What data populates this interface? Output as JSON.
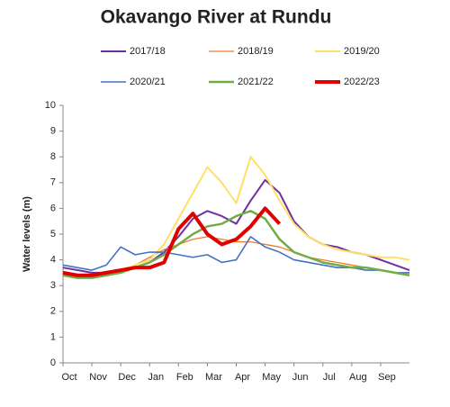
{
  "chart_data": {
    "type": "line",
    "title": "Okavango River at Rundu",
    "y_label": "Water levels (m)",
    "x": [
      0,
      0.5,
      1,
      1.5,
      2,
      2.5,
      3,
      3.5,
      4,
      4.5,
      5,
      5.5,
      6,
      6.5,
      7,
      7.5,
      8,
      8.5,
      9,
      9.5,
      10,
      10.5,
      11,
      11.5,
      12
    ],
    "xlim": [
      0,
      12
    ],
    "xticks": [
      {
        "value": 0,
        "label": "Oct"
      },
      {
        "value": 1,
        "label": "Nov"
      },
      {
        "value": 2,
        "label": "Dec"
      },
      {
        "value": 3,
        "label": "Jan"
      },
      {
        "value": 4,
        "label": "Feb"
      },
      {
        "value": 5,
        "label": "Mar"
      },
      {
        "value": 6,
        "label": "Apr"
      },
      {
        "value": 7,
        "label": "May"
      },
      {
        "value": 8,
        "label": "Jun"
      },
      {
        "value": 9,
        "label": "Jul"
      },
      {
        "value": 10,
        "label": "Aug"
      },
      {
        "value": 11,
        "label": "Sep"
      }
    ],
    "ylim": [
      0,
      10
    ],
    "yticks": [
      0,
      1,
      2,
      3,
      4,
      5,
      6,
      7,
      8,
      9,
      10
    ],
    "grid": false,
    "series": [
      {
        "name": "2017/18",
        "color": "#7030a0",
        "width": 2,
        "values": [
          3.7,
          3.6,
          3.5,
          3.5,
          3.6,
          3.7,
          3.9,
          4.3,
          4.9,
          5.6,
          5.9,
          5.7,
          5.4,
          6.3,
          7.1,
          6.6,
          5.5,
          4.9,
          4.6,
          4.5,
          4.3,
          4.2,
          4.0,
          3.8,
          3.6
        ]
      },
      {
        "name": "2018/19",
        "color": "#ed7d31",
        "width": 1.3,
        "values": [
          3.5,
          3.4,
          3.4,
          3.5,
          3.6,
          3.8,
          4.1,
          4.4,
          4.6,
          4.8,
          4.9,
          4.8,
          4.7,
          4.7,
          4.6,
          4.5,
          4.3,
          4.1,
          4.0,
          3.9,
          3.8,
          3.7,
          3.6,
          3.5,
          3.5
        ]
      },
      {
        "name": "2019/20",
        "color": "#ffe066",
        "width": 2,
        "values": [
          3.5,
          3.4,
          3.4,
          3.5,
          3.6,
          3.8,
          4.0,
          4.6,
          5.6,
          6.6,
          7.6,
          7.0,
          6.2,
          8.0,
          7.3,
          6.3,
          5.4,
          4.9,
          4.6,
          4.4,
          4.3,
          4.2,
          4.1,
          4.1,
          4.0
        ]
      },
      {
        "name": "2020/21",
        "color": "#4472c4",
        "width": 1.6,
        "values": [
          3.8,
          3.7,
          3.6,
          3.8,
          4.5,
          4.2,
          4.3,
          4.3,
          4.2,
          4.1,
          4.2,
          3.9,
          4.0,
          4.9,
          4.5,
          4.3,
          4.0,
          3.9,
          3.8,
          3.7,
          3.7,
          3.6,
          3.6,
          3.5,
          3.5
        ]
      },
      {
        "name": "2021/22",
        "color": "#70ad47",
        "width": 2.5,
        "values": [
          3.4,
          3.3,
          3.3,
          3.4,
          3.5,
          3.7,
          3.9,
          4.2,
          4.6,
          5.0,
          5.3,
          5.4,
          5.7,
          5.9,
          5.6,
          4.8,
          4.3,
          4.1,
          3.9,
          3.8,
          3.7,
          3.7,
          3.6,
          3.5,
          3.4
        ]
      },
      {
        "name": "2022/23",
        "color": "#e00000",
        "width": 4,
        "values": [
          3.5,
          3.4,
          3.4,
          3.5,
          3.6,
          3.7,
          3.7,
          3.9,
          5.2,
          5.8,
          5.0,
          4.6,
          4.8,
          5.3,
          6.0,
          5.4,
          null,
          null,
          null,
          null,
          null,
          null,
          null,
          null,
          null
        ]
      }
    ]
  }
}
